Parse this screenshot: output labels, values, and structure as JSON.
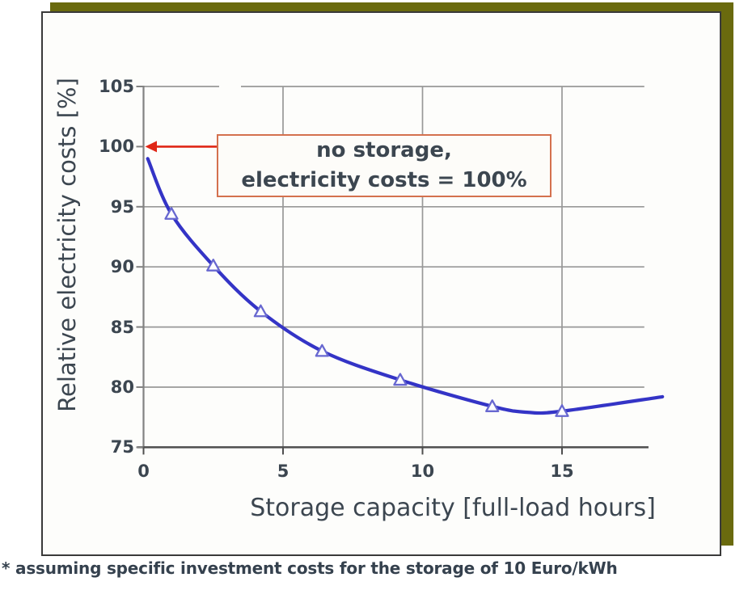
{
  "page": {
    "footnote": "* assuming specific investment costs for the storage of 10 Euro/kWh"
  },
  "colors": {
    "shadow": "#6a6a0e",
    "card_border": "#3a3a3a",
    "card_bg": "#fdfdfb",
    "grid": "#989898",
    "axis": "#828282",
    "axis_bottom": "#4e4e4e",
    "line": "#3434c6",
    "marker_stroke": "#6868d0",
    "marker_fill": "#fcfcff",
    "arrow": "#e02616",
    "annotation_border": "#d4714e",
    "annotation_bg": "#fdfcf9",
    "text": "#3c4650"
  },
  "chart_data": {
    "type": "line",
    "xlabel": "Storage capacity [full-load hours]",
    "ylabel": "Relative electricity costs [%]",
    "xlim": [
      0,
      18.8
    ],
    "ylim": [
      75,
      105
    ],
    "x_ticks": [
      0,
      5,
      10,
      15
    ],
    "y_ticks": [
      105,
      100,
      95,
      90,
      85,
      80,
      75
    ],
    "grid": {
      "horizontal_at": [
        105,
        95,
        90,
        85,
        80
      ],
      "vertical_at": [
        5,
        10,
        15
      ],
      "h_extent_x": 17.95
    },
    "series": [
      {
        "name": "relative electricity costs vs storage capacity",
        "marker": "open-triangle",
        "line_points": [
          [
            0.15,
            99.0
          ],
          [
            1,
            94.4
          ],
          [
            2.5,
            90.1
          ],
          [
            4.2,
            86.3
          ],
          [
            6.4,
            83.0
          ],
          [
            9.2,
            80.6
          ],
          [
            12.5,
            78.4
          ],
          [
            13.8,
            77.9
          ],
          [
            15,
            78.0
          ],
          [
            18.6,
            79.2
          ]
        ],
        "marker_points": [
          [
            1,
            94.4
          ],
          [
            2.5,
            90.1
          ],
          [
            4.2,
            86.3
          ],
          [
            6.4,
            83.0
          ],
          [
            9.2,
            80.6
          ],
          [
            12.5,
            78.4
          ],
          [
            15,
            78.0
          ]
        ]
      }
    ],
    "annotation": {
      "line1": "no storage,",
      "line2": "electricity costs = 100%",
      "arrow_target": {
        "x": 0,
        "y": 100
      }
    }
  }
}
